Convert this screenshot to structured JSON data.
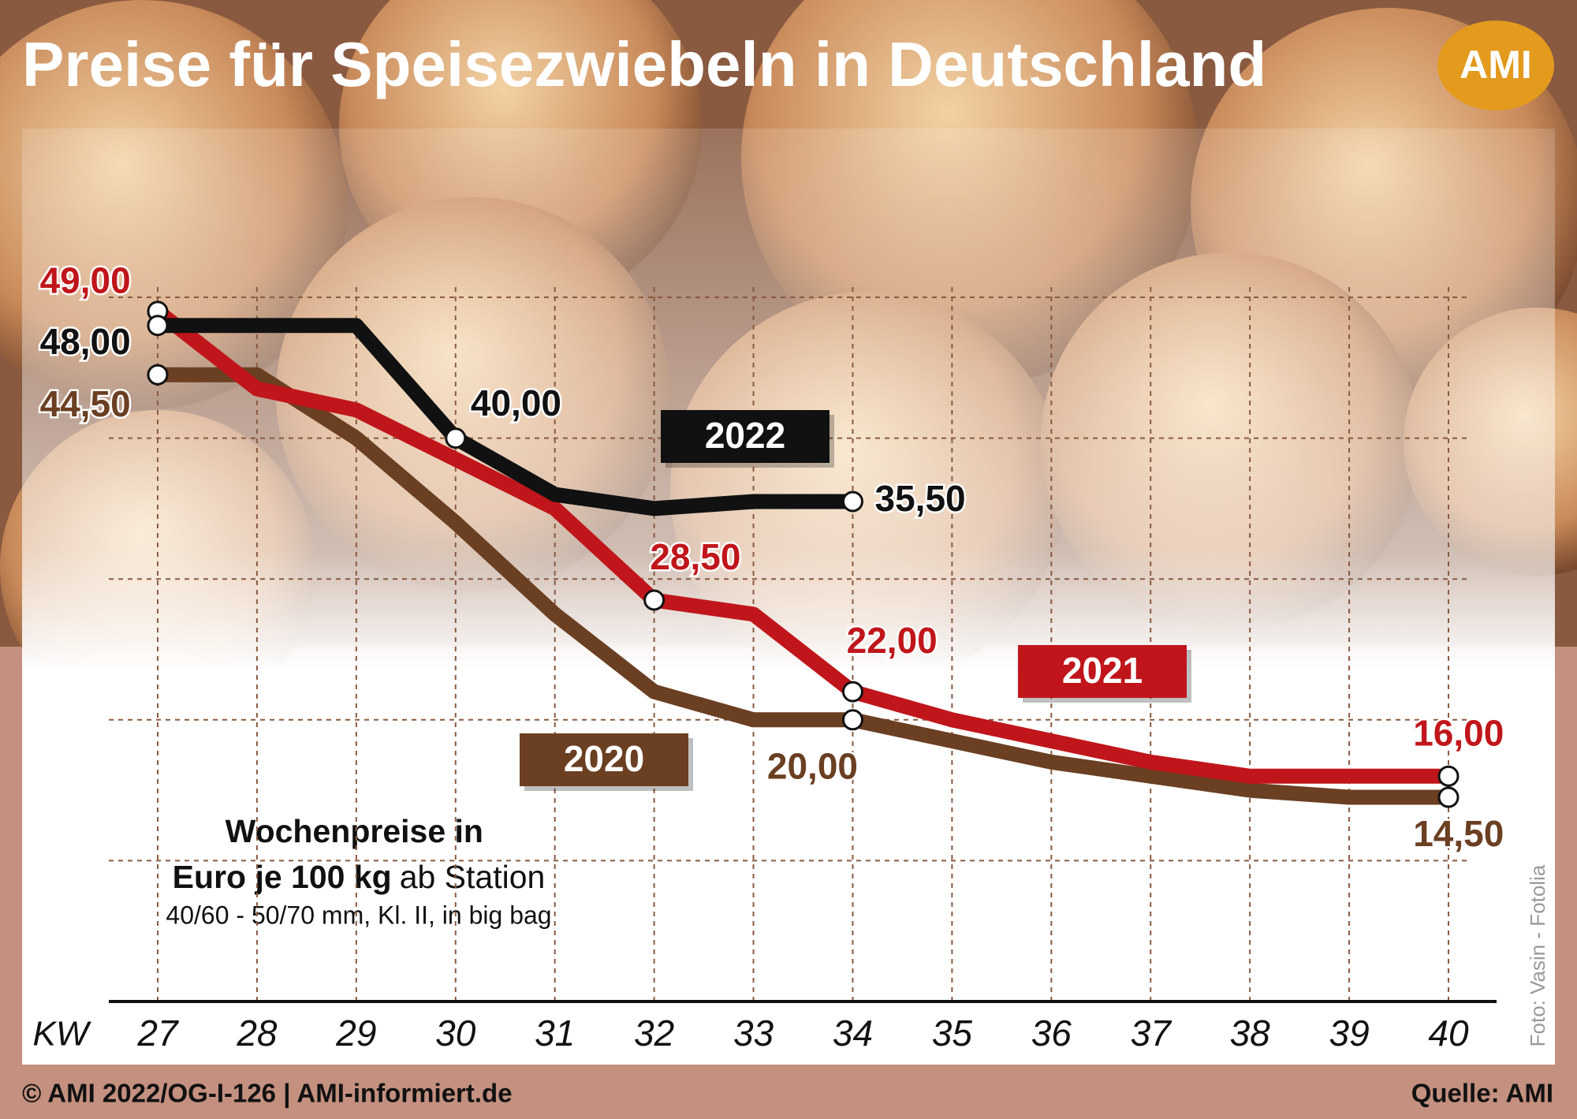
{
  "chart_data": {
    "type": "line",
    "title": "Preise für Speisezwiebeln in Deutschland",
    "logo": "AMI",
    "x_label": "KW",
    "categories": [
      "27",
      "28",
      "29",
      "30",
      "31",
      "32",
      "33",
      "34",
      "35",
      "36",
      "37",
      "38",
      "39",
      "40"
    ],
    "series": [
      {
        "name": "2022",
        "color": "#111111",
        "values": [
          48,
          48,
          48,
          40,
          36,
          35,
          35.5,
          35.5,
          null,
          null,
          null,
          null,
          null,
          null
        ],
        "value_labels": [
          "48,00",
          null,
          null,
          "40,00",
          null,
          null,
          null,
          "35,50",
          null,
          null,
          null,
          null,
          null,
          null
        ]
      },
      {
        "name": "2021",
        "color": "#c0161b",
        "values": [
          49,
          43.5,
          42,
          38.5,
          35,
          28.5,
          27.5,
          22,
          20,
          18.5,
          17,
          16,
          16,
          16
        ],
        "value_labels": [
          "49,00",
          null,
          null,
          null,
          null,
          "28,50",
          null,
          "22,00",
          null,
          null,
          null,
          null,
          null,
          "16,00"
        ]
      },
      {
        "name": "2020",
        "color": "#6b3f22",
        "values": [
          44.5,
          44.5,
          40,
          34,
          27.5,
          22,
          20,
          20,
          18.5,
          17,
          16,
          15,
          14.5,
          14.5
        ],
        "value_labels": [
          "44,50",
          null,
          null,
          null,
          null,
          null,
          null,
          "20,00",
          null,
          null,
          null,
          null,
          null,
          "14,50"
        ]
      }
    ],
    "ylim": [
      0,
      50
    ],
    "yticks": [
      10,
      20,
      30,
      40,
      50
    ],
    "grid": true,
    "note": [
      "Wochenpreise in",
      "Euro je 100 kg",
      "ab Station",
      "40/60 - 50/70 mm, Kl. II, in big bag"
    ],
    "footer_left": "© AMI 2022/OG-I-126 | AMI-informiert.de",
    "footer_right": "Quelle: AMI",
    "photo_credit": "Foto: Vasin - Fotolia"
  }
}
